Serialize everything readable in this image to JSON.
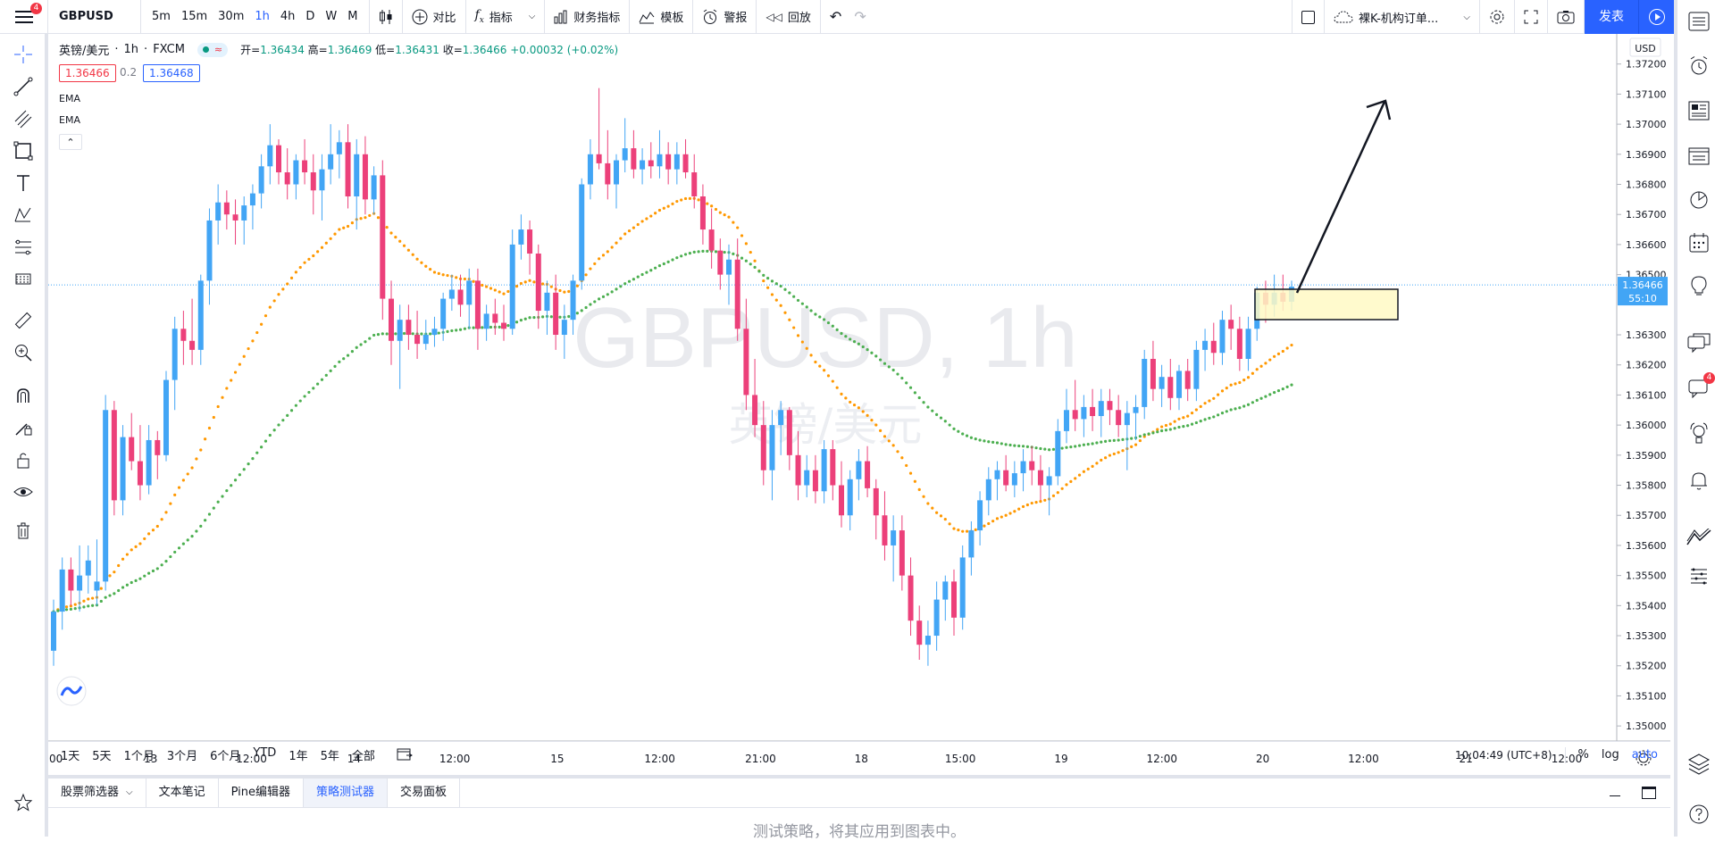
{
  "topbar": {
    "menu_badge": "4",
    "symbol": "GBPUSD",
    "intervals": [
      "5m",
      "15m",
      "30m",
      "1h",
      "4h",
      "D",
      "W",
      "M"
    ],
    "active_interval": "1h",
    "compare_label": "对比",
    "indicators_label": "指标",
    "financials_label": "财务指标",
    "templates_label": "模板",
    "alert_label": "警报",
    "replay_label": "回放",
    "layout_name": "裸K-机构订单...",
    "publish_label": "发表"
  },
  "legend": {
    "name": "英镑/美元",
    "interval": "1h",
    "exchange": "FXCM",
    "open_label": "开=",
    "open": "1.36434",
    "high_label": "高=",
    "high": "1.36469",
    "low_label": "低=",
    "low": "1.36431",
    "close_label": "收=",
    "close": "1.36466",
    "change": "+0.00032 (+0.02%)",
    "sell_price": "1.36466",
    "spread": "0.2",
    "buy_price": "1.36468",
    "ema1": "EMA",
    "ema2": "EMA"
  },
  "watermark": {
    "symbol": "GBPUSD, 1h",
    "name": "英镑/美元"
  },
  "chart_data": {
    "type": "candlestick",
    "currency": "USD",
    "y_ticks": [
      "1.37200",
      "1.37100",
      "1.37000",
      "1.36900",
      "1.36800",
      "1.36700",
      "1.36600",
      "1.36500",
      "1.36300",
      "1.36200",
      "1.36100",
      "1.36000",
      "1.35900",
      "1.35800",
      "1.35700",
      "1.35600",
      "1.35500",
      "1.35400",
      "1.35300",
      "1.35200",
      "1.35100",
      "1.35000"
    ],
    "ylim": [
      1.3495,
      1.373
    ],
    "last_price": "1.36466",
    "countdown": "55:10",
    "x_ticks": [
      "00",
      "13",
      "12:00",
      "14",
      "12:00",
      "15",
      "12:00",
      "21:00",
      "18",
      "15:00",
      "19",
      "12:00",
      "20",
      "12:00",
      "21",
      "12:00"
    ],
    "candles": [
      [
        1.3525,
        1.3542,
        1.352,
        1.3538
      ],
      [
        1.3538,
        1.3556,
        1.3532,
        1.3552
      ],
      [
        1.3552,
        1.3556,
        1.354,
        1.3545
      ],
      [
        1.3545,
        1.356,
        1.3538,
        1.355
      ],
      [
        1.355,
        1.356,
        1.3544,
        1.3555
      ],
      [
        1.3545,
        1.3562,
        1.354,
        1.3548
      ],
      [
        1.3548,
        1.361,
        1.3545,
        1.3605
      ],
      [
        1.3605,
        1.3608,
        1.357,
        1.3575
      ],
      [
        1.3575,
        1.36,
        1.357,
        1.3596
      ],
      [
        1.3596,
        1.3604,
        1.3585,
        1.3588
      ],
      [
        1.3588,
        1.36,
        1.3575,
        1.358
      ],
      [
        1.358,
        1.36,
        1.3577,
        1.3595
      ],
      [
        1.3595,
        1.3598,
        1.3582,
        1.359
      ],
      [
        1.359,
        1.3618,
        1.3588,
        1.3615
      ],
      [
        1.3615,
        1.3636,
        1.3605,
        1.3632
      ],
      [
        1.3632,
        1.3638,
        1.362,
        1.3628
      ],
      [
        1.3628,
        1.3642,
        1.362,
        1.3625
      ],
      [
        1.3625,
        1.365,
        1.362,
        1.3648
      ],
      [
        1.3648,
        1.3672,
        1.364,
        1.3668
      ],
      [
        1.3668,
        1.368,
        1.366,
        1.3674
      ],
      [
        1.3674,
        1.3678,
        1.3665,
        1.367
      ],
      [
        1.367,
        1.3675,
        1.366,
        1.3668
      ],
      [
        1.3668,
        1.3676,
        1.366,
        1.3673
      ],
      [
        1.3673,
        1.368,
        1.3665,
        1.3677
      ],
      [
        1.3677,
        1.369,
        1.3672,
        1.3686
      ],
      [
        1.3686,
        1.37,
        1.368,
        1.3693
      ],
      [
        1.3693,
        1.3695,
        1.368,
        1.3684
      ],
      [
        1.3684,
        1.3692,
        1.3675,
        1.368
      ],
      [
        1.368,
        1.369,
        1.3675,
        1.3688
      ],
      [
        1.3688,
        1.3695,
        1.368,
        1.3684
      ],
      [
        1.3684,
        1.369,
        1.367,
        1.3678
      ],
      [
        1.3678,
        1.369,
        1.3668,
        1.3685
      ],
      [
        1.3685,
        1.37,
        1.368,
        1.369
      ],
      [
        1.369,
        1.3698,
        1.3682,
        1.3694
      ],
      [
        1.3694,
        1.37,
        1.3672,
        1.3676
      ],
      [
        1.3676,
        1.3695,
        1.3665,
        1.369
      ],
      [
        1.369,
        1.3696,
        1.367,
        1.3675
      ],
      [
        1.3675,
        1.3686,
        1.367,
        1.3683
      ],
      [
        1.3683,
        1.3688,
        1.3635,
        1.3642
      ],
      [
        1.3642,
        1.3648,
        1.362,
        1.3628
      ],
      [
        1.3628,
        1.364,
        1.3612,
        1.3635
      ],
      [
        1.3635,
        1.364,
        1.3625,
        1.363
      ],
      [
        1.363,
        1.3638,
        1.3622,
        1.3627
      ],
      [
        1.3627,
        1.3635,
        1.3625,
        1.363
      ],
      [
        1.363,
        1.3636,
        1.3626,
        1.3632
      ],
      [
        1.3632,
        1.3644,
        1.3628,
        1.3642
      ],
      [
        1.3642,
        1.365,
        1.3638,
        1.3645
      ],
      [
        1.3645,
        1.365,
        1.3636,
        1.364
      ],
      [
        1.364,
        1.3652,
        1.3632,
        1.3648
      ],
      [
        1.3648,
        1.3652,
        1.3625,
        1.3632
      ],
      [
        1.3632,
        1.364,
        1.3628,
        1.3637
      ],
      [
        1.3637,
        1.3642,
        1.363,
        1.3634
      ],
      [
        1.3634,
        1.364,
        1.3628,
        1.3632
      ],
      [
        1.3632,
        1.3665,
        1.363,
        1.366
      ],
      [
        1.366,
        1.367,
        1.3655,
        1.3665
      ],
      [
        1.3665,
        1.3668,
        1.365,
        1.3657
      ],
      [
        1.3657,
        1.366,
        1.3632,
        1.3638
      ],
      [
        1.3638,
        1.3648,
        1.363,
        1.3644
      ],
      [
        1.3644,
        1.365,
        1.3625,
        1.363
      ],
      [
        1.363,
        1.364,
        1.3622,
        1.3635
      ],
      [
        1.3635,
        1.365,
        1.363,
        1.3648
      ],
      [
        1.3648,
        1.3682,
        1.3645,
        1.368
      ],
      [
        1.368,
        1.3695,
        1.3675,
        1.369
      ],
      [
        1.369,
        1.3712,
        1.3685,
        1.3687
      ],
      [
        1.3687,
        1.3698,
        1.3675,
        1.368
      ],
      [
        1.368,
        1.369,
        1.3672,
        1.3688
      ],
      [
        1.3688,
        1.3702,
        1.3684,
        1.3692
      ],
      [
        1.3692,
        1.3698,
        1.3682,
        1.3685
      ],
      [
        1.3685,
        1.3692,
        1.368,
        1.3688
      ],
      [
        1.3688,
        1.3694,
        1.3682,
        1.3686
      ],
      [
        1.3686,
        1.3698,
        1.3682,
        1.369
      ],
      [
        1.369,
        1.3694,
        1.368,
        1.3685
      ],
      [
        1.3685,
        1.3694,
        1.368,
        1.369
      ],
      [
        1.369,
        1.3695,
        1.3682,
        1.3684
      ],
      [
        1.3684,
        1.369,
        1.3672,
        1.3676
      ],
      [
        1.3676,
        1.368,
        1.366,
        1.3665
      ],
      [
        1.3665,
        1.3672,
        1.3652,
        1.3658
      ],
      [
        1.3658,
        1.3662,
        1.3645,
        1.365
      ],
      [
        1.365,
        1.366,
        1.364,
        1.3655
      ],
      [
        1.3655,
        1.3662,
        1.3628,
        1.3632
      ],
      [
        1.3632,
        1.3642,
        1.3605,
        1.361
      ],
      [
        1.361,
        1.3622,
        1.3596,
        1.36
      ],
      [
        1.36,
        1.3608,
        1.358,
        1.3585
      ],
      [
        1.3585,
        1.3605,
        1.3575,
        1.36
      ],
      [
        1.36,
        1.3608,
        1.359,
        1.3605
      ],
      [
        1.3605,
        1.3606,
        1.3585,
        1.359
      ],
      [
        1.359,
        1.3598,
        1.3575,
        1.358
      ],
      [
        1.358,
        1.359,
        1.3576,
        1.3585
      ],
      [
        1.3585,
        1.359,
        1.3574,
        1.3578
      ],
      [
        1.3578,
        1.3595,
        1.3574,
        1.3592
      ],
      [
        1.3592,
        1.3595,
        1.3575,
        1.358
      ],
      [
        1.358,
        1.3588,
        1.3566,
        1.357
      ],
      [
        1.357,
        1.3585,
        1.3565,
        1.3582
      ],
      [
        1.3582,
        1.3592,
        1.3575,
        1.3588
      ],
      [
        1.3588,
        1.3593,
        1.3576,
        1.3579
      ],
      [
        1.3579,
        1.3582,
        1.3562,
        1.357
      ],
      [
        1.357,
        1.3578,
        1.3555,
        1.356
      ],
      [
        1.356,
        1.357,
        1.3548,
        1.3565
      ],
      [
        1.3565,
        1.357,
        1.3545,
        1.355
      ],
      [
        1.355,
        1.3556,
        1.353,
        1.3535
      ],
      [
        1.3535,
        1.354,
        1.3522,
        1.3527
      ],
      [
        1.3527,
        1.3535,
        1.352,
        1.353
      ],
      [
        1.353,
        1.3548,
        1.3525,
        1.3542
      ],
      [
        1.3542,
        1.355,
        1.3535,
        1.3548
      ],
      [
        1.3548,
        1.3552,
        1.353,
        1.3536
      ],
      [
        1.3536,
        1.356,
        1.3532,
        1.3556
      ],
      [
        1.3556,
        1.3568,
        1.355,
        1.3565
      ],
      [
        1.3565,
        1.3578,
        1.356,
        1.3575
      ],
      [
        1.3575,
        1.3586,
        1.357,
        1.3582
      ],
      [
        1.3582,
        1.3588,
        1.3575,
        1.3585
      ],
      [
        1.3585,
        1.359,
        1.3578,
        1.358
      ],
      [
        1.358,
        1.3588,
        1.3576,
        1.3584
      ],
      [
        1.3584,
        1.3592,
        1.3578,
        1.3588
      ],
      [
        1.3588,
        1.3593,
        1.358,
        1.3585
      ],
      [
        1.3585,
        1.359,
        1.3575,
        1.358
      ],
      [
        1.358,
        1.3586,
        1.357,
        1.3583
      ],
      [
        1.3583,
        1.3602,
        1.358,
        1.3598
      ],
      [
        1.3598,
        1.3612,
        1.3594,
        1.3605
      ],
      [
        1.3605,
        1.3615,
        1.3598,
        1.3602
      ],
      [
        1.3602,
        1.361,
        1.3596,
        1.3606
      ],
      [
        1.3606,
        1.3612,
        1.3598,
        1.3603
      ],
      [
        1.3603,
        1.3612,
        1.3596,
        1.3608
      ],
      [
        1.3608,
        1.3612,
        1.36,
        1.3605
      ],
      [
        1.3605,
        1.361,
        1.3596,
        1.36
      ],
      [
        1.36,
        1.3608,
        1.3585,
        1.3604
      ],
      [
        1.3604,
        1.361,
        1.3595,
        1.3606
      ],
      [
        1.3606,
        1.3625,
        1.3602,
        1.3622
      ],
      [
        1.3622,
        1.3628,
        1.3608,
        1.3612
      ],
      [
        1.3612,
        1.362,
        1.3606,
        1.3616
      ],
      [
        1.3616,
        1.3622,
        1.3605,
        1.3609
      ],
      [
        1.3609,
        1.362,
        1.3605,
        1.3618
      ],
      [
        1.3618,
        1.3622,
        1.3608,
        1.3612
      ],
      [
        1.3612,
        1.3628,
        1.3608,
        1.3625
      ],
      [
        1.3625,
        1.3632,
        1.3618,
        1.3628
      ],
      [
        1.3628,
        1.3634,
        1.362,
        1.3624
      ],
      [
        1.3624,
        1.3638,
        1.362,
        1.3635
      ],
      [
        1.3635,
        1.364,
        1.3625,
        1.3632
      ],
      [
        1.3632,
        1.3636,
        1.3618,
        1.3622
      ],
      [
        1.3622,
        1.3636,
        1.3618,
        1.3632
      ],
      [
        1.3632,
        1.3646,
        1.3628,
        1.3644
      ],
      [
        1.3644,
        1.3648,
        1.3634,
        1.364
      ],
      [
        1.364,
        1.365,
        1.3636,
        1.3644
      ],
      [
        1.3644,
        1.365,
        1.3638,
        1.3641
      ],
      [
        1.3641,
        1.3648,
        1.3638,
        1.3646
      ]
    ],
    "ema_fast_color": "#ff9800",
    "ema_slow_color": "#4caf50",
    "up_color": "#42a5f5",
    "down_color": "#ec407a",
    "zone_color": "#fff9c4"
  },
  "bottom": {
    "timeframes": [
      "1天",
      "5天",
      "1个月",
      "3个月",
      "6个月",
      "YTD",
      "1年",
      "5年",
      "全部"
    ],
    "time": "10:04:49 (UTC+8)",
    "percent": "%",
    "log": "log",
    "auto": "auto"
  },
  "panel": {
    "tabs": [
      "股票筛选器",
      "文本笔记",
      "Pine编辑器",
      "策略测试器",
      "交易面板"
    ],
    "active_tab": "策略测试器",
    "message": "测试策略，将其应用到图表中。"
  },
  "rightbar": {
    "chat_badge": "4"
  },
  "icons": [
    "menu-icon",
    "crosshair-icon",
    "trend-line-icon",
    "fib-icon",
    "rectangle-icon",
    "text-icon",
    "pattern-icon",
    "prediction-icon",
    "icon-brush",
    "ruler-icon",
    "zoom-icon",
    "magnet-icon",
    "lock-drawing-icon",
    "unlock-icon",
    "eye-icon",
    "trash-icon",
    "star-icon",
    "watchlist-icon",
    "alarm-icon",
    "news-icon",
    "data-window-icon",
    "hotlist-icon",
    "calendar-icon",
    "ideas-icon",
    "chat-icon",
    "notifications-icon",
    "layers-icon",
    "help-icon"
  ]
}
